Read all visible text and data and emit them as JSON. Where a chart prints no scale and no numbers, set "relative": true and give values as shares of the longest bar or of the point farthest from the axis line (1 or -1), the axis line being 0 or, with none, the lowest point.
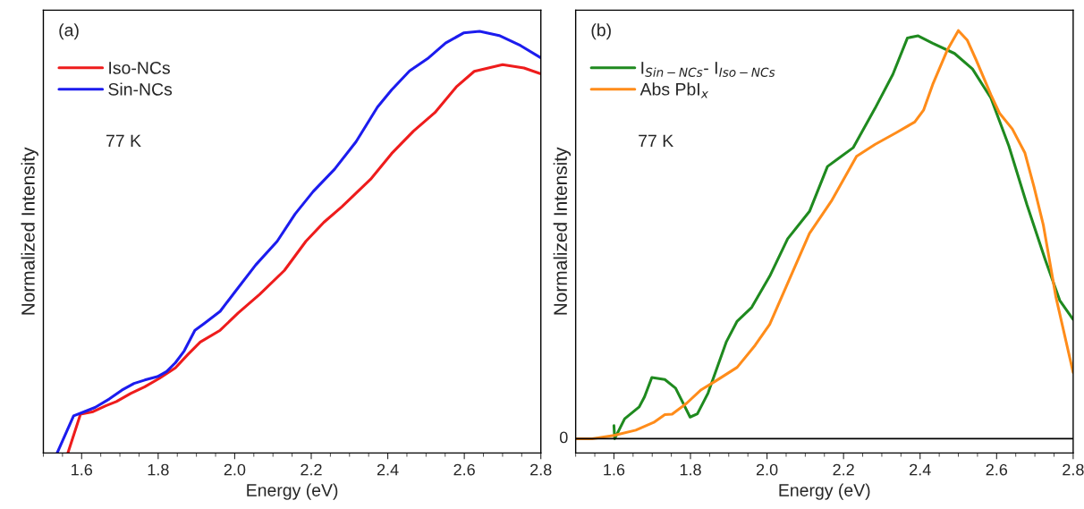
{
  "chart_data": [
    {
      "type": "line",
      "relative": true,
      "xlabel": "Energy (eV)",
      "ylabel": "Normalized Intensity",
      "xlim": [
        1.5,
        2.8
      ],
      "xticks": [
        1.6,
        1.8,
        {
          "value": 2.0,
          "label": "2.0"
        },
        2.2,
        2.4,
        2.6,
        2.8
      ],
      "legend": "top left",
      "grid": false,
      "annotations": [
        "(a)",
        "77 K"
      ],
      "series": [
        {
          "name": "Iso-NCs",
          "color": "#ee1c1c",
          "x": [
            1.564,
            1.597,
            1.63,
            1.663,
            1.691,
            1.728,
            1.765,
            1.803,
            1.845,
            1.878,
            1.91,
            1.962,
            2.009,
            2.065,
            2.13,
            2.186,
            2.233,
            2.28,
            2.355,
            2.41,
            2.467,
            2.523,
            2.579,
            2.626,
            2.7,
            2.756,
            2.8
          ],
          "values": [
            0,
            0.092,
            0.098,
            0.112,
            0.122,
            0.141,
            0.157,
            0.177,
            0.202,
            0.234,
            0.263,
            0.291,
            0.332,
            0.376,
            0.433,
            0.502,
            0.547,
            0.584,
            0.649,
            0.71,
            0.763,
            0.807,
            0.868,
            0.905,
            0.921,
            0.913,
            0.899
          ]
        },
        {
          "name": "Sin-NCs",
          "color": "#1c1cee",
          "x": [
            1.536,
            1.579,
            1.607,
            1.635,
            1.672,
            1.705,
            1.737,
            1.765,
            1.798,
            1.822,
            1.845,
            1.868,
            1.896,
            1.92,
            1.962,
            1.999,
            2.055,
            2.111,
            2.158,
            2.205,
            2.261,
            2.317,
            2.373,
            2.41,
            2.457,
            2.504,
            2.551,
            2.598,
            2.64,
            2.691,
            2.747,
            2.8
          ],
          "values": [
            0,
            0.088,
            0.098,
            0.108,
            0.128,
            0.149,
            0.165,
            0.173,
            0.181,
            0.193,
            0.214,
            0.242,
            0.291,
            0.307,
            0.336,
            0.38,
            0.446,
            0.502,
            0.567,
            0.62,
            0.673,
            0.738,
            0.82,
            0.861,
            0.906,
            0.935,
            0.972,
            0.996,
            1.0,
            0.99,
            0.966,
            0.937
          ]
        }
      ]
    },
    {
      "type": "line",
      "relative": true,
      "xlabel": "Energy (eV)",
      "ylabel": "Normalized Intensity",
      "xlim": [
        1.5,
        2.8
      ],
      "xticks": [
        1.6,
        1.8,
        {
          "value": 2.0,
          "label": "2.0"
        },
        2.2,
        2.4,
        2.6,
        2.8
      ],
      "legend": "top left",
      "grid": false,
      "annotations": [
        "(b)",
        "77 K"
      ],
      "ref_lines": [
        {
          "axis": "y",
          "value": 0,
          "label": "0",
          "color": "#000000"
        }
      ],
      "series": [
        {
          "name": "I$_{Sin−NCs}$- I$_{Iso−NCs}$",
          "color": "#1f8a1f",
          "x": [
            1.6,
            1.602,
            1.628,
            1.666,
            1.68,
            1.699,
            1.733,
            1.761,
            1.799,
            1.818,
            1.846,
            1.894,
            1.922,
            1.96,
            2.007,
            2.054,
            2.111,
            2.158,
            2.187,
            2.225,
            2.282,
            2.329,
            2.367,
            2.395,
            2.433,
            2.49,
            2.537,
            2.585,
            2.632,
            2.679,
            2.727,
            2.765,
            2.8
          ],
          "values": [
            0.032,
            0,
            0.049,
            0.078,
            0.103,
            0.15,
            0.145,
            0.124,
            0.053,
            0.061,
            0.112,
            0.238,
            0.288,
            0.322,
            0.398,
            0.49,
            0.557,
            0.667,
            0.687,
            0.713,
            0.809,
            0.893,
            0.982,
            0.987,
            0.969,
            0.944,
            0.906,
            0.835,
            0.717,
            0.574,
            0.439,
            0.339,
            0.292
          ]
        },
        {
          "name": "Abs PbI$_{x}$",
          "color": "#ff8c1a",
          "x": [
            1.5,
            1.543,
            1.6,
            1.657,
            1.704,
            1.733,
            1.752,
            1.79,
            1.828,
            1.865,
            1.922,
            1.969,
            2.007,
            2.054,
            2.111,
            2.168,
            2.234,
            2.282,
            2.338,
            2.386,
            2.409,
            2.433,
            2.471,
            2.5,
            2.523,
            2.547,
            2.585,
            2.608,
            2.641,
            2.674,
            2.698,
            2.722,
            2.755,
            2.8
          ],
          "values": [
            0,
            0,
            0.008,
            0.021,
            0.04,
            0.059,
            0.06,
            0.087,
            0.12,
            0.141,
            0.175,
            0.229,
            0.28,
            0.381,
            0.503,
            0.582,
            0.692,
            0.721,
            0.75,
            0.776,
            0.805,
            0.868,
            0.952,
            1.0,
            0.977,
            0.927,
            0.843,
            0.797,
            0.759,
            0.7,
            0.616,
            0.524,
            0.347,
            0.162
          ]
        }
      ]
    }
  ]
}
